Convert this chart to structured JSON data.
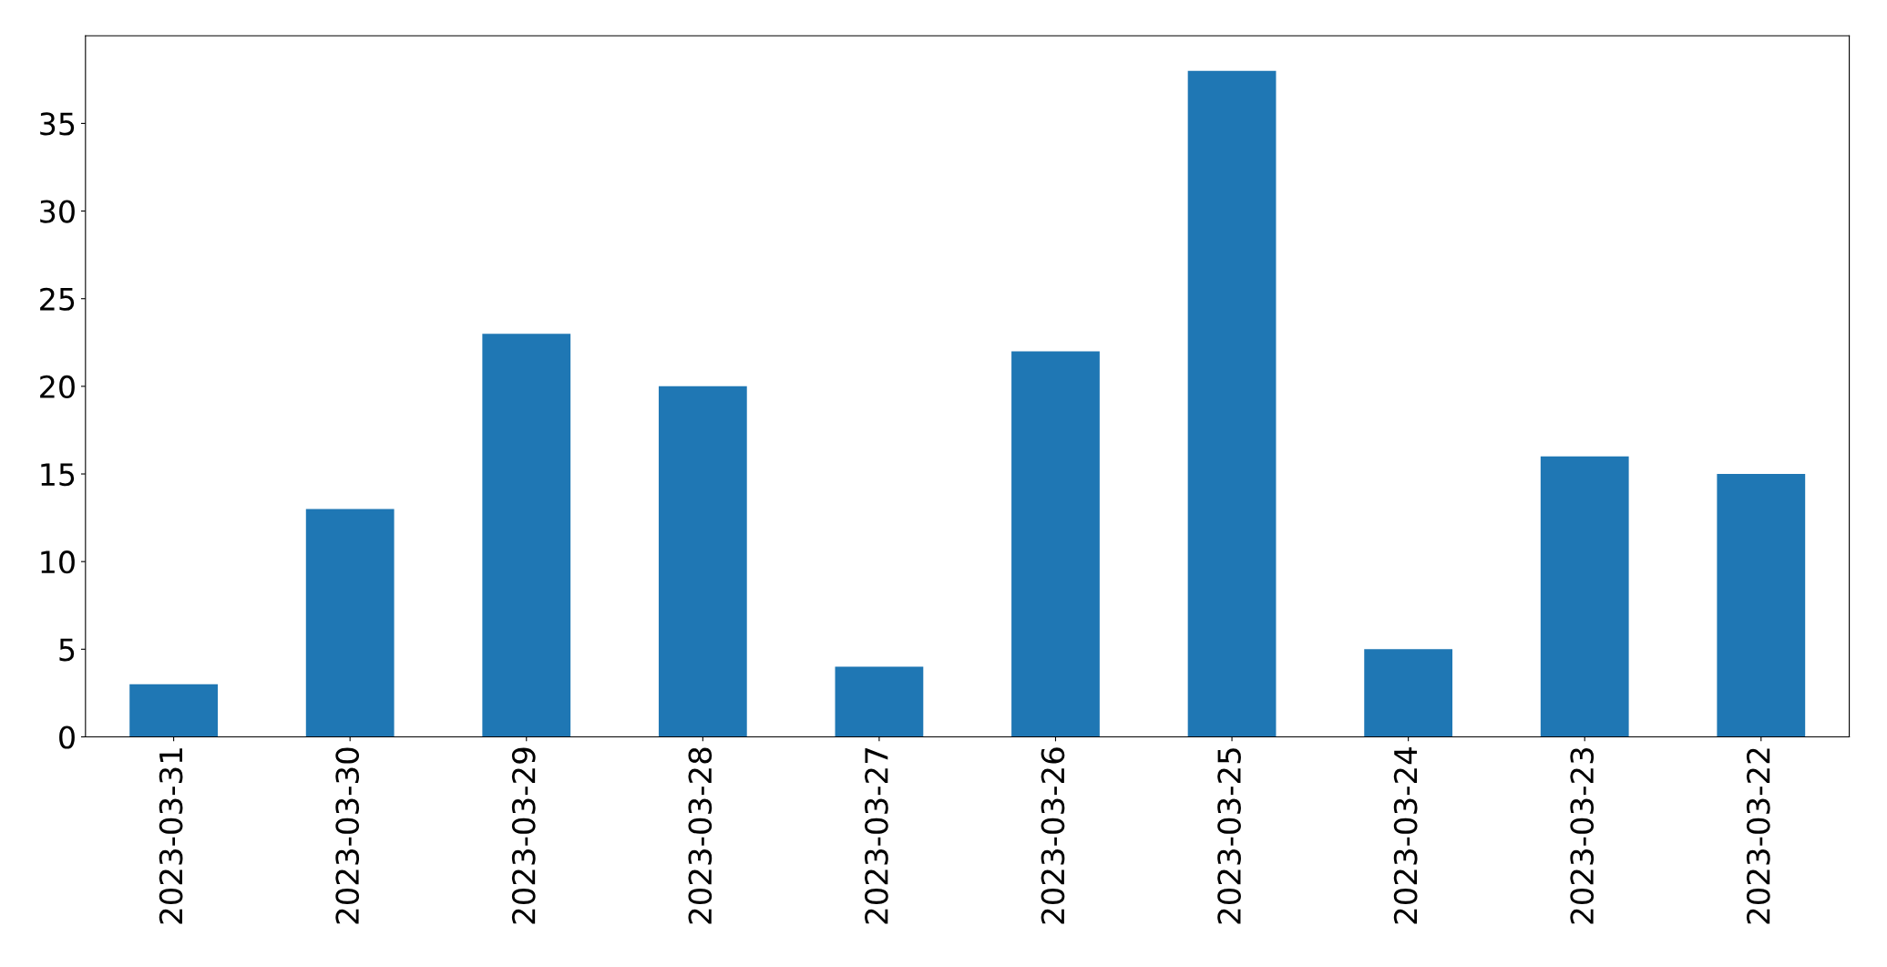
{
  "chart_data": {
    "type": "bar",
    "categories": [
      "2023-03-31",
      "2023-03-30",
      "2023-03-29",
      "2023-03-28",
      "2023-03-27",
      "2023-03-26",
      "2023-03-25",
      "2023-03-24",
      "2023-03-23",
      "2023-03-22"
    ],
    "values": [
      3,
      13,
      23,
      20,
      4,
      22,
      38,
      5,
      16,
      15
    ],
    "color": "#1f77b4",
    "ylim": [
      0,
      40
    ],
    "yticks": [
      0,
      5,
      10,
      15,
      20,
      25,
      30,
      35
    ],
    "grid": false
  }
}
